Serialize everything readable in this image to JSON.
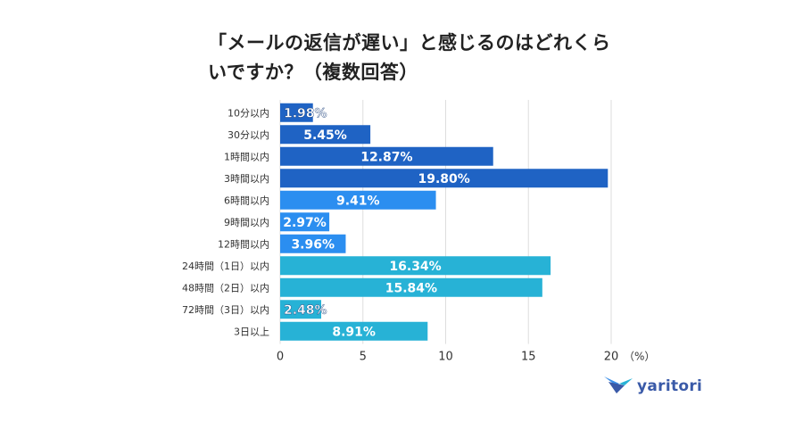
{
  "title": "「メールの返信が遅い」と感じるのはどれくらいですか？（複数回答）",
  "logo": {
    "name": "yaritori",
    "icon": "yaritori-bird-logo-icon"
  },
  "chart_data": {
    "type": "bar",
    "orientation": "horizontal",
    "title": "「メールの返信が遅い」と感じるのはどれくらいですか？（複数回答）",
    "unit_label": "（%）",
    "categories": [
      "10分以内",
      "30分以内",
      "1時間以内",
      "3時間以内",
      "6時間以内",
      "9時間以内",
      "12時間以内",
      "24時間（1日）以内",
      "48時間（2日）以内",
      "72時間（3日）以内",
      "3日以上"
    ],
    "values": [
      1.98,
      5.45,
      12.87,
      19.8,
      9.41,
      2.97,
      3.96,
      16.34,
      15.84,
      2.48,
      8.91
    ],
    "value_labels": [
      "1.98%",
      "5.45%",
      "12.87%",
      "19.80%",
      "9.41%",
      "2.97%",
      "3.96%",
      "16.34%",
      "15.84%",
      "2.48%",
      "8.91%"
    ],
    "colors": [
      "#1f63c4",
      "#1f63c4",
      "#1f63c4",
      "#1f63c4",
      "#2b8ef0",
      "#2b8ef0",
      "#2b8ef0",
      "#27b2d6",
      "#27b2d6",
      "#27b2d6",
      "#27b2d6"
    ],
    "xlim": [
      0,
      20
    ],
    "xticks": [
      0,
      5,
      10,
      15,
      20
    ],
    "grid": true
  }
}
